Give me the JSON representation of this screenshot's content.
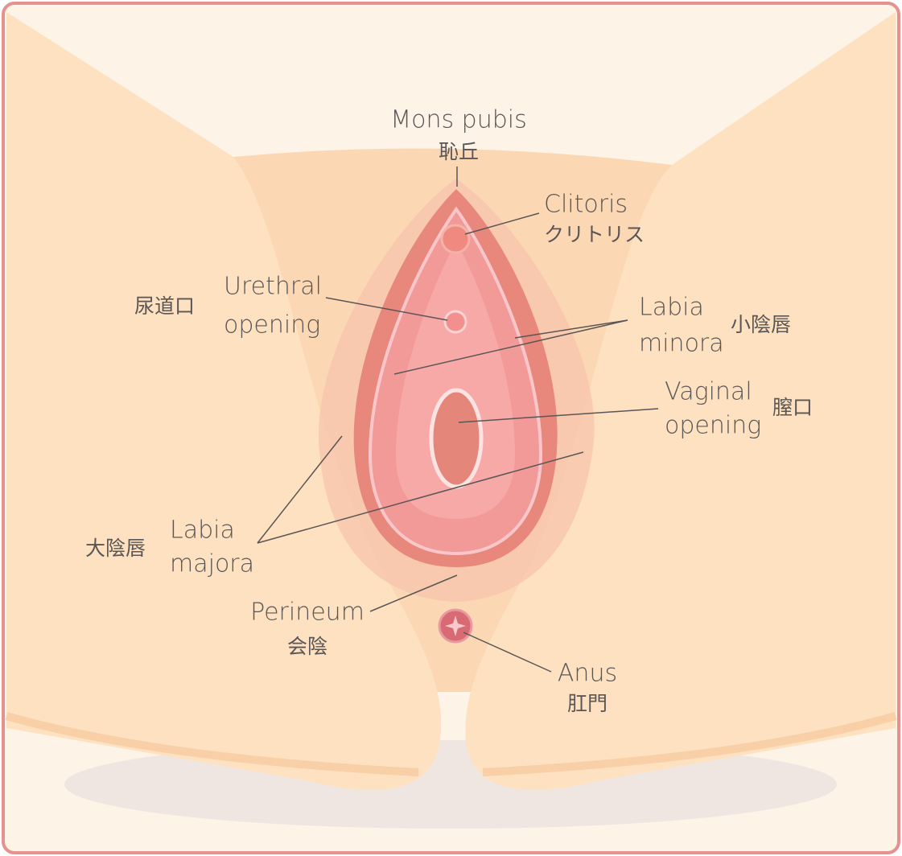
{
  "labels": [
    {
      "english": [
        "Mons pubis"
      ],
      "japanese": "恥丘"
    },
    {
      "english": [
        "Clitoris"
      ],
      "japanese": "クリトリス"
    },
    {
      "english": [
        "Urethral",
        "opening"
      ],
      "japanese": "尿道口"
    },
    {
      "english": [
        "Labia",
        "minora"
      ],
      "japanese": "小陰唇"
    },
    {
      "english": [
        "Vaginal",
        "opening"
      ],
      "japanese": "膣口"
    },
    {
      "english": [
        "Labia",
        "majora"
      ],
      "japanese": "大陰唇"
    },
    {
      "english": [
        "Perineum"
      ],
      "japanese": "会陰"
    },
    {
      "english": [
        "Anus"
      ],
      "japanese": "肛門"
    }
  ]
}
